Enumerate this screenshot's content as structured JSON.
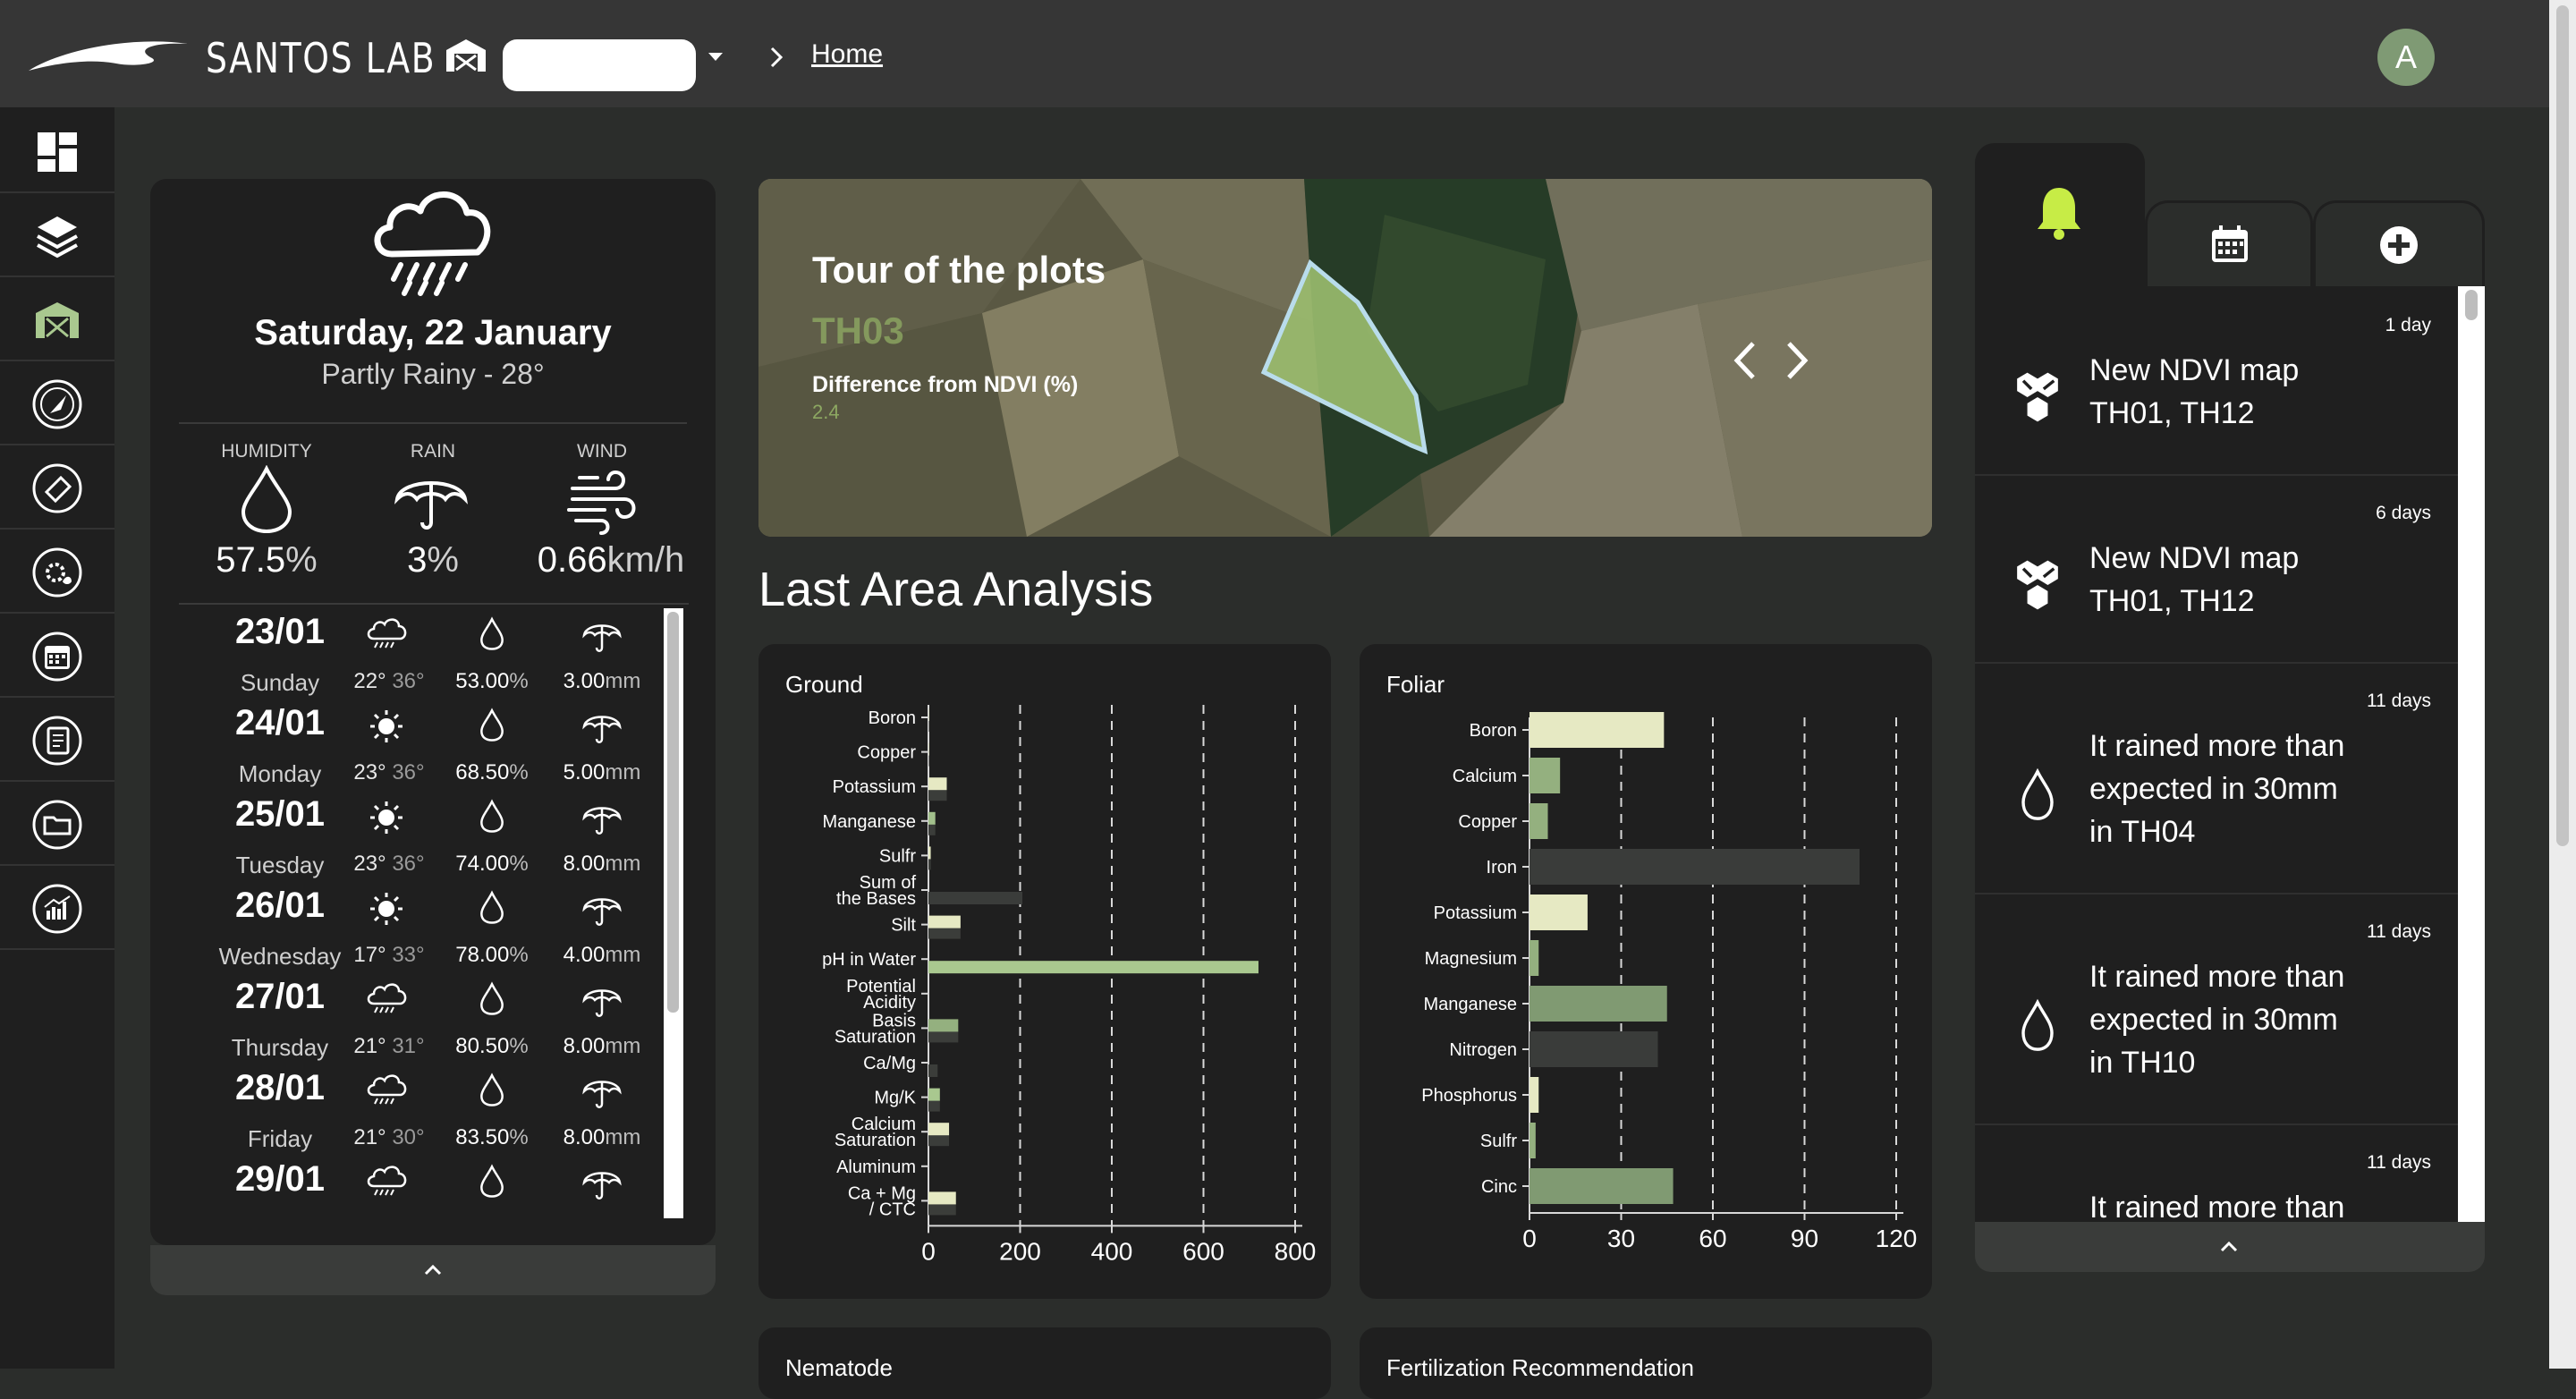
{
  "header": {
    "brand": "SANTOS LAB",
    "farm_select_value": "",
    "breadcrumb_home": "Home",
    "avatar_initial": "A"
  },
  "sidebar": {
    "items": [
      "dashboard-icon",
      "layers-icon",
      "farm-icon",
      "compass-icon",
      "tag-icon",
      "gear-leaf-icon",
      "calendar-icon",
      "report-icon",
      "folder-icon",
      "analytics-icon"
    ],
    "active_index": 2,
    "accent": "#a9c88f"
  },
  "weather": {
    "date": "Saturday, 22 January",
    "summary": "Partly Rainy - 28°",
    "metrics": [
      {
        "label": "HUMIDITY",
        "value": "57.5",
        "unit": "%"
      },
      {
        "label": "RAIN",
        "value": "3",
        "unit": "%"
      },
      {
        "label": "WIND",
        "value": "0.66",
        "unit": "km/h"
      }
    ],
    "forecast": [
      {
        "date": "23/01",
        "day": "Sunday",
        "icon": "rain-cloud-icon",
        "low": "22°",
        "high": "36°",
        "humidity": "53.00",
        "rain": "3.00"
      },
      {
        "date": "24/01",
        "day": "Monday",
        "icon": "sun-icon",
        "low": "23°",
        "high": "36°",
        "humidity": "68.50",
        "rain": "5.00"
      },
      {
        "date": "25/01",
        "day": "Tuesday",
        "icon": "sun-icon",
        "low": "23°",
        "high": "36°",
        "humidity": "74.00",
        "rain": "8.00"
      },
      {
        "date": "26/01",
        "day": "Wednesday",
        "icon": "sun-icon",
        "low": "17°",
        "high": "33°",
        "humidity": "78.00",
        "rain": "4.00"
      },
      {
        "date": "27/01",
        "day": "Thursday",
        "icon": "rain-cloud-icon",
        "low": "21°",
        "high": "31°",
        "humidity": "80.50",
        "rain": "8.00"
      },
      {
        "date": "28/01",
        "day": "Friday",
        "icon": "rain-cloud-icon",
        "low": "21°",
        "high": "30°",
        "humidity": "83.50",
        "rain": "8.00"
      },
      {
        "date": "29/01",
        "day": "",
        "icon": "rain-cloud-icon",
        "low": "",
        "high": "",
        "humidity": "",
        "rain": ""
      }
    ],
    "hum_unit": "%",
    "rain_unit": "mm"
  },
  "tour": {
    "title": "Tour of the plots",
    "plot": "TH03",
    "diff_label": "Difference from NDVI (%)",
    "diff_value": "2.4"
  },
  "analysis": {
    "title": "Last Area Analysis",
    "nematode_title": "Nematode",
    "fertilization_title": "Fertilization Recommendation"
  },
  "chart_data": [
    {
      "type": "bar",
      "orientation": "horizontal",
      "title": "Ground",
      "categories": [
        "Boron",
        "Copper",
        "Potassium",
        "Manganese",
        "Sulfr",
        "Sum of the Bases",
        "Silt",
        "pH in Water",
        "Potential Acidity",
        "Basis Saturation",
        "Ca/Mg",
        "Mg/K",
        "Calcium Saturation",
        "Aluminum",
        "Ca + Mg / CTC"
      ],
      "series": [
        {
          "values": [
            1,
            1,
            40,
            15,
            5,
            0,
            70,
            0,
            0,
            65,
            0,
            25,
            45,
            0,
            60
          ],
          "colors": [
            "#c9cfa6",
            "#c9cfa6",
            "#e6e9c3",
            "#a2c08c",
            "#e6e9c3",
            "#c9cfa6",
            "#e6e9c3",
            "#a9c88f",
            "#a9c88f",
            "#94b07f",
            "#c9cfa6",
            "#a9c88f",
            "#e6e9c3",
            "#c9cfa6",
            "#e6e9c3"
          ]
        },
        {
          "values": [
            1,
            1,
            40,
            15,
            5,
            205,
            70,
            720,
            0,
            65,
            20,
            25,
            45,
            0,
            60
          ],
          "colors": [
            "#3b3d3a",
            "#3b3d3a",
            "#3b3d3a",
            "#3b3d3a",
            "#3b3d3a",
            "#3a3c3a",
            "#3b3d3a",
            "#a9c88f",
            "#3b3d3a",
            "#3b3d3a",
            "#3b3d3a",
            "#3b3d3a",
            "#3b3d3a",
            "#3b3d3a",
            "#3b3d3a"
          ]
        }
      ],
      "xlim": [
        0,
        800
      ],
      "xticks": [
        0,
        200,
        400,
        600,
        800
      ],
      "grid": "vertical dashed"
    },
    {
      "type": "bar",
      "orientation": "horizontal",
      "title": "Foliar",
      "categories": [
        "Boron",
        "Calcium",
        "Copper",
        "Iron",
        "Potassium",
        "Magnesium",
        "Manganese",
        "Nitrogen",
        "Phosphorus",
        "Sulfr",
        "Cinc"
      ],
      "values": [
        44,
        10,
        6,
        108,
        19,
        3,
        45,
        42,
        3,
        2,
        47
      ],
      "colors": [
        "#e6e9c3",
        "#94b07f",
        "#94b07f",
        "#3a3c3a",
        "#e6e9c3",
        "#94b07f",
        "#809a72",
        "#3a3c3a",
        "#e6e9c3",
        "#94b07f",
        "#809a72"
      ],
      "xlim": [
        0,
        120
      ],
      "xticks": [
        0,
        30,
        60,
        90,
        120
      ],
      "grid": "vertical dashed"
    }
  ],
  "notifications": {
    "items": [
      {
        "time": "1 day",
        "icon": "hexagons-icon",
        "lines": [
          "New NDVI map",
          "TH01, TH12"
        ]
      },
      {
        "time": "6 days",
        "icon": "hexagons-icon",
        "lines": [
          "New NDVI map",
          "TH01, TH12"
        ]
      },
      {
        "time": "11 days",
        "icon": "drop-icon",
        "lines": [
          "It rained more than",
          "expected in 30mm",
          "in TH04"
        ]
      },
      {
        "time": "11 days",
        "icon": "drop-icon",
        "lines": [
          "It rained more than",
          "expected in 30mm",
          "in TH10"
        ]
      },
      {
        "time": "11 days",
        "icon": "drop-icon",
        "lines": [
          "It rained more than",
          "",
          ""
        ]
      }
    ],
    "bell_color": "#c7ec46"
  }
}
